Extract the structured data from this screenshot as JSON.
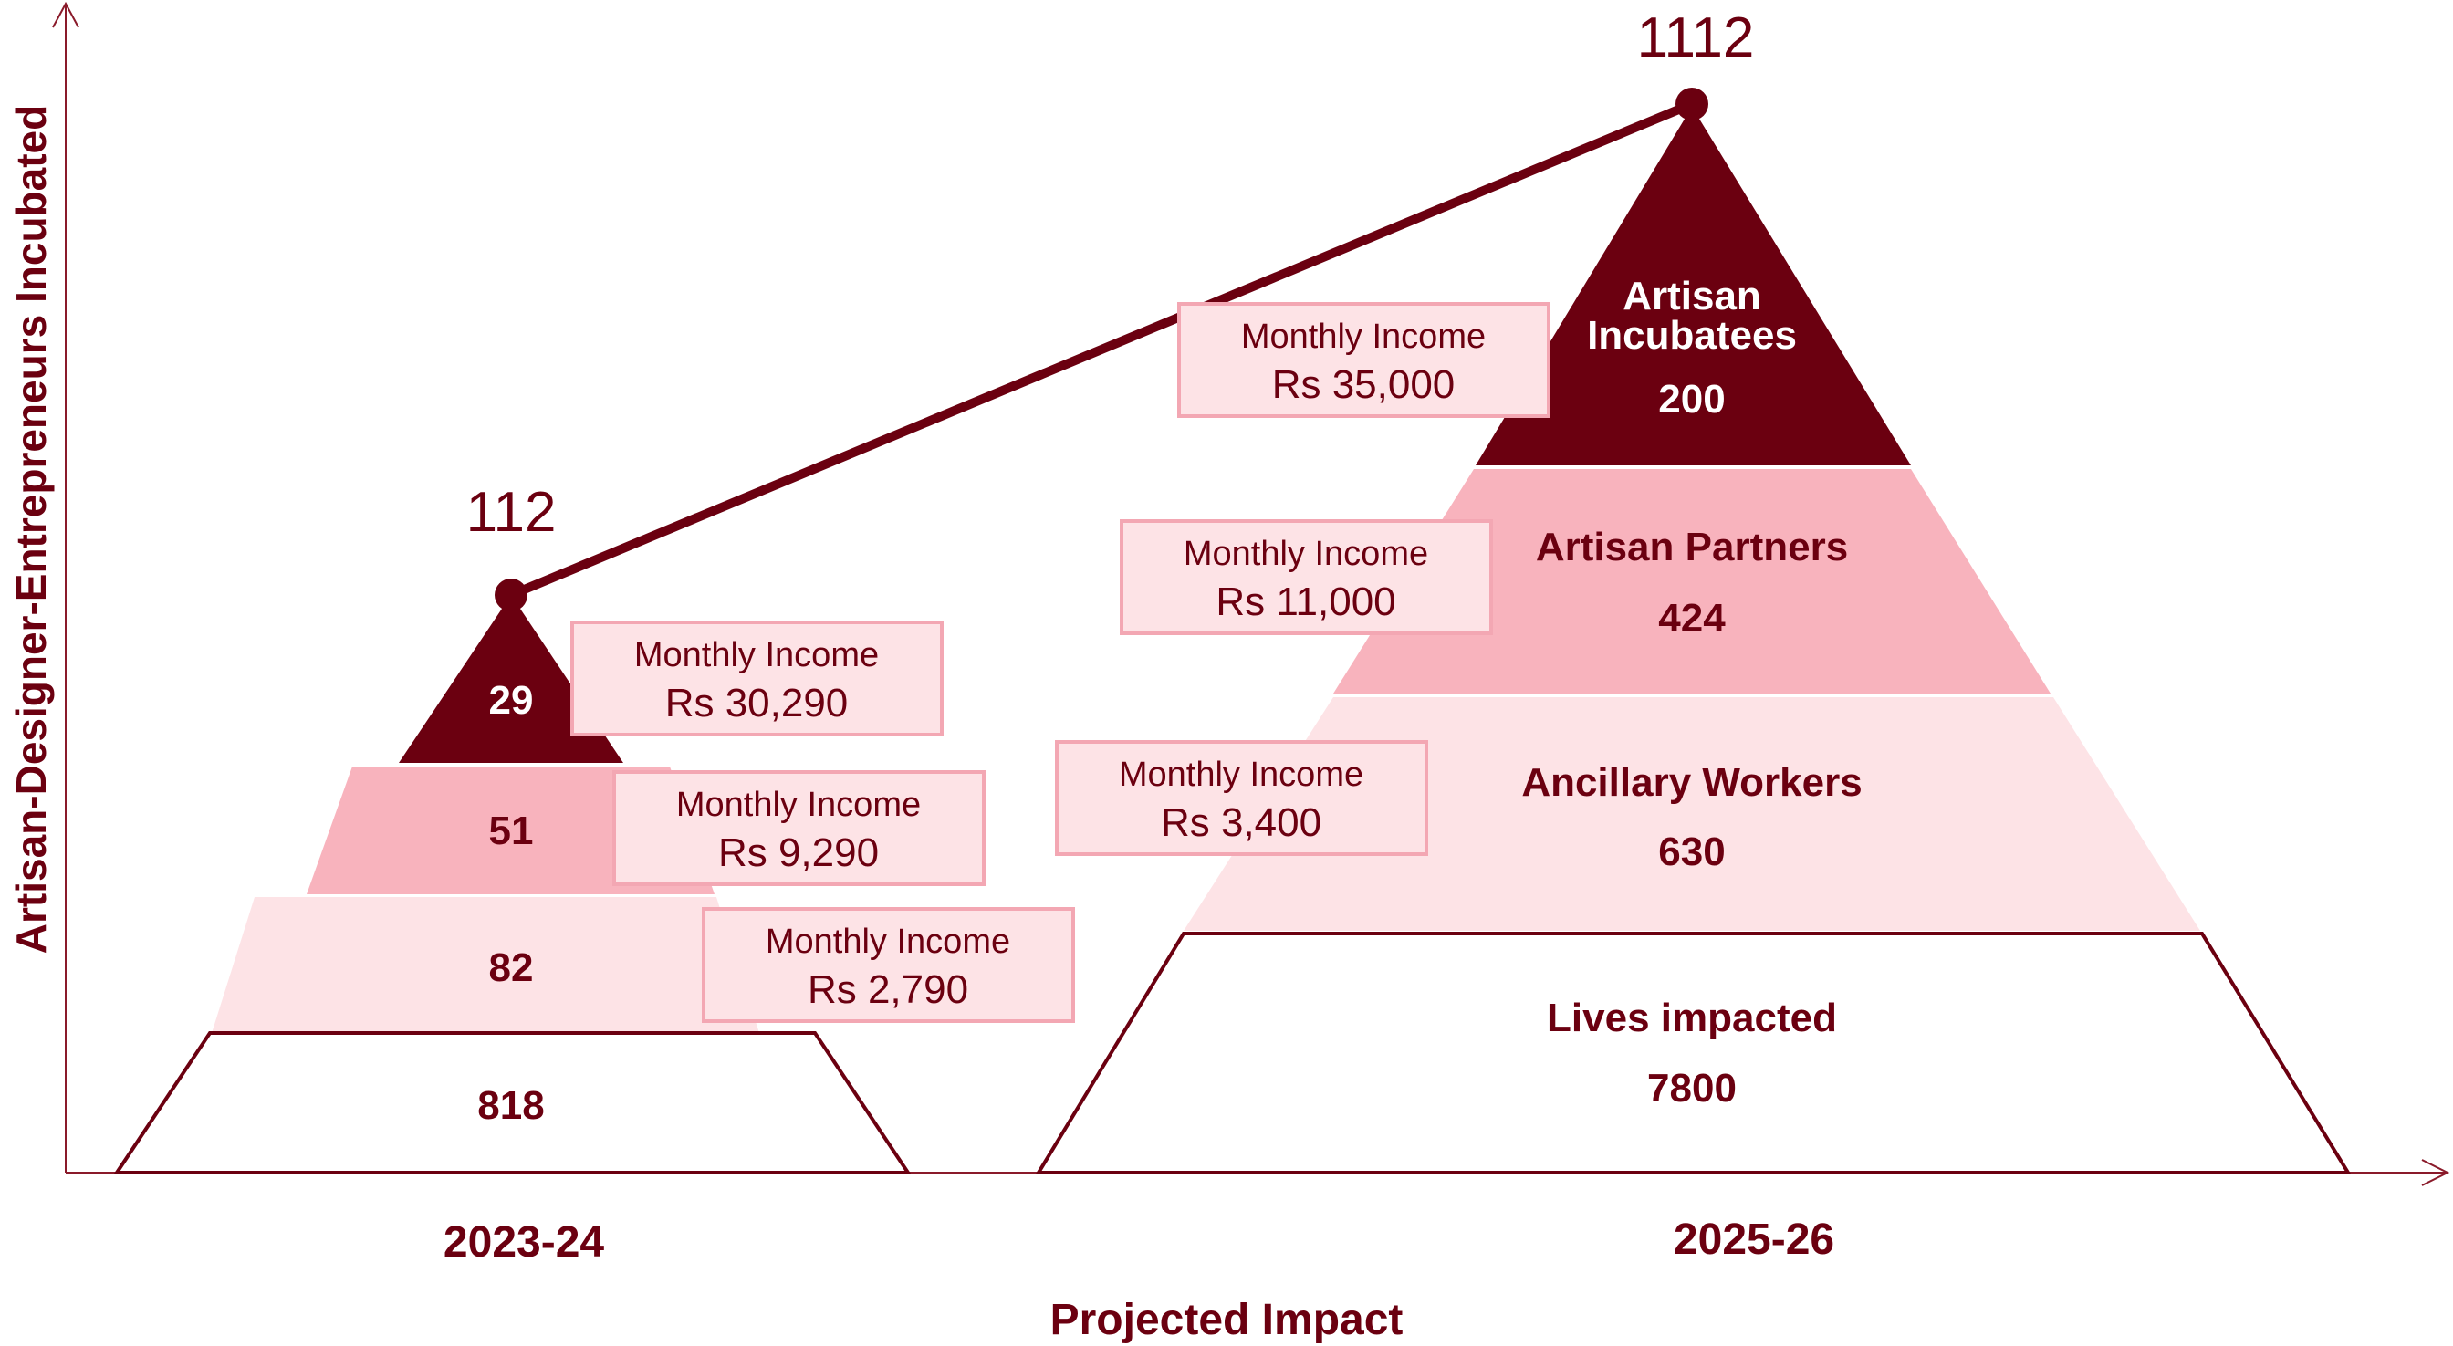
{
  "colors": {
    "dark": "#6b0010",
    "mid": "#f8b3bd",
    "light": "#fde3e6",
    "income_fill": "#fde3e6",
    "income_border": "#f3a7b3",
    "text_dark": "#6b0010",
    "axis": "#8a1a2a"
  },
  "chart_data": {
    "type": "pyramid",
    "ylabel": "Artisan-Designer-Entrepreneurs Incubated",
    "xlabel": "Projected Impact",
    "totals_series": {
      "categories": [
        "2023-24",
        "2025-26"
      ],
      "values": [
        112,
        1112
      ],
      "labels": [
        "112",
        "1112"
      ]
    },
    "pyramids": [
      {
        "period": "2023-24",
        "tiers": [
          {
            "name": "",
            "value": 29,
            "value_label": "29",
            "income_label": "Monthly Income",
            "income": "Rs 30,290"
          },
          {
            "name": "",
            "value": 51,
            "value_label": "51",
            "income_label": "Monthly Income",
            "income": "Rs 9,290"
          },
          {
            "name": "",
            "value": 82,
            "value_label": "82",
            "income_label": "Monthly Income",
            "income": "Rs 2,790"
          }
        ],
        "base": {
          "name": "",
          "value": 818,
          "value_label": "818"
        }
      },
      {
        "period": "2025-26",
        "tiers": [
          {
            "name_line1": "Artisan",
            "name_line2": "Incubatees",
            "value": 200,
            "value_label": "200",
            "income_label": "Monthly Income",
            "income": "Rs 35,000"
          },
          {
            "name": "Artisan Partners",
            "value": 424,
            "value_label": "424",
            "income_label": "Monthly Income",
            "income": "Rs 11,000"
          },
          {
            "name": "Ancillary Workers",
            "value": 630,
            "value_label": "630",
            "income_label": "Monthly Income",
            "income": "Rs 3,400"
          }
        ],
        "base": {
          "name": "Lives impacted",
          "value": 7800,
          "value_label": "7800"
        }
      }
    ]
  }
}
